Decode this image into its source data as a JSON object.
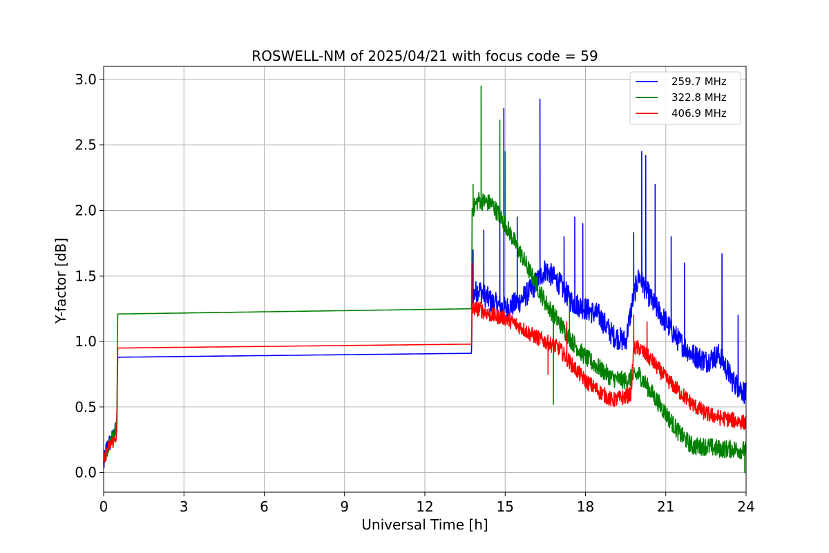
{
  "chart_data": {
    "type": "line",
    "title": "ROSWELL-NM of 2025/04/21 with focus code = 59",
    "xlabel": "Universal Time [h]",
    "ylabel": "Y-factor [dB]",
    "xlim": [
      0,
      24
    ],
    "ylim": [
      -0.15,
      3.1
    ],
    "xticks": [
      0,
      3,
      6,
      9,
      12,
      15,
      18,
      21,
      24
    ],
    "yticks": [
      0.0,
      0.5,
      1.0,
      1.5,
      2.0,
      2.5,
      3.0
    ],
    "ytick_labels": [
      "0.0",
      "0.5",
      "1.0",
      "1.5",
      "2.0",
      "2.5",
      "3.0"
    ],
    "grid": true,
    "legend_position": "upper right",
    "series": [
      {
        "name": "259.7 MHz",
        "color": "#0000ff",
        "noise": 0.09,
        "x": [
          0,
          0.1,
          0.2,
          0.3,
          0.4,
          0.48,
          0.5,
          0.52,
          13.75,
          13.76,
          13.8,
          14.0,
          14.5,
          15.0,
          15.5,
          16.0,
          16.5,
          17.0,
          17.5,
          18.0,
          18.5,
          19.0,
          19.5,
          19.8,
          20.0,
          20.5,
          21.0,
          21.5,
          22.0,
          22.5,
          23.0,
          23.5,
          24.0
        ],
        "y": [
          0.05,
          0.18,
          0.22,
          0.25,
          0.3,
          0.32,
          0.4,
          0.88,
          0.91,
          1.4,
          1.35,
          1.4,
          1.3,
          1.25,
          1.3,
          1.4,
          1.55,
          1.45,
          1.3,
          1.25,
          1.2,
          1.05,
          1.0,
          1.35,
          1.5,
          1.3,
          1.15,
          1.0,
          0.9,
          0.85,
          0.9,
          0.7,
          0.6
        ],
        "spikes": [
          [
            13.8,
            1.7
          ],
          [
            14.2,
            1.85
          ],
          [
            14.8,
            1.95
          ],
          [
            14.95,
            2.78
          ],
          [
            15.45,
            1.95
          ],
          [
            16.3,
            2.85
          ],
          [
            17.2,
            1.8
          ],
          [
            17.6,
            1.95
          ],
          [
            17.9,
            1.9
          ],
          [
            19.8,
            1.83
          ],
          [
            20.1,
            2.45
          ],
          [
            20.25,
            2.42
          ],
          [
            20.6,
            2.2
          ],
          [
            21.2,
            1.8
          ],
          [
            21.7,
            1.6
          ],
          [
            23.1,
            1.67
          ],
          [
            23.7,
            1.2
          ]
        ]
      },
      {
        "name": "322.8 MHz",
        "color": "#008000",
        "noise": 0.07,
        "x": [
          0,
          0.1,
          0.2,
          0.3,
          0.4,
          0.48,
          0.5,
          0.52,
          13.75,
          13.76,
          14.0,
          14.5,
          15.0,
          15.5,
          16.0,
          16.5,
          17.0,
          17.5,
          18.0,
          18.5,
          19.0,
          19.5,
          20.0,
          20.5,
          21.0,
          21.5,
          22.0,
          22.5,
          23.0,
          23.5,
          24.0
        ],
        "y": [
          0.05,
          0.15,
          0.2,
          0.25,
          0.3,
          0.35,
          0.4,
          1.21,
          1.25,
          2.0,
          2.08,
          2.05,
          1.9,
          1.7,
          1.5,
          1.3,
          1.15,
          1.0,
          0.88,
          0.8,
          0.72,
          0.7,
          0.75,
          0.6,
          0.45,
          0.3,
          0.2,
          0.2,
          0.18,
          0.18,
          0.17
        ],
        "spikes": [
          [
            13.8,
            2.2
          ],
          [
            14.1,
            2.95
          ],
          [
            14.8,
            2.69
          ],
          [
            15.0,
            2.45
          ],
          [
            16.8,
            0.52
          ],
          [
            17.4,
            1.3
          ],
          [
            23.95,
            0.0
          ]
        ]
      },
      {
        "name": "406.9 MHz",
        "color": "#ff0000",
        "noise": 0.06,
        "x": [
          0,
          0.1,
          0.2,
          0.3,
          0.4,
          0.48,
          0.5,
          0.52,
          13.75,
          13.76,
          14.0,
          14.5,
          15.0,
          15.5,
          16.0,
          16.5,
          17.0,
          17.5,
          18.0,
          18.5,
          19.0,
          19.5,
          19.7,
          19.8,
          20.0,
          20.5,
          21.0,
          21.5,
          22.0,
          22.5,
          23.0,
          23.5,
          24.0
        ],
        "y": [
          0.08,
          0.15,
          0.2,
          0.22,
          0.25,
          0.28,
          0.3,
          0.95,
          0.98,
          1.25,
          1.25,
          1.2,
          1.18,
          1.12,
          1.05,
          1.0,
          0.95,
          0.82,
          0.7,
          0.62,
          0.55,
          0.58,
          0.6,
          0.95,
          0.95,
          0.85,
          0.72,
          0.62,
          0.52,
          0.45,
          0.42,
          0.4,
          0.38
        ],
        "spikes": [
          [
            13.76,
            1.6
          ],
          [
            16.6,
            0.75
          ],
          [
            17.3,
            1.15
          ],
          [
            19.8,
            1.2
          ],
          [
            20.3,
            1.15
          ]
        ]
      }
    ]
  }
}
